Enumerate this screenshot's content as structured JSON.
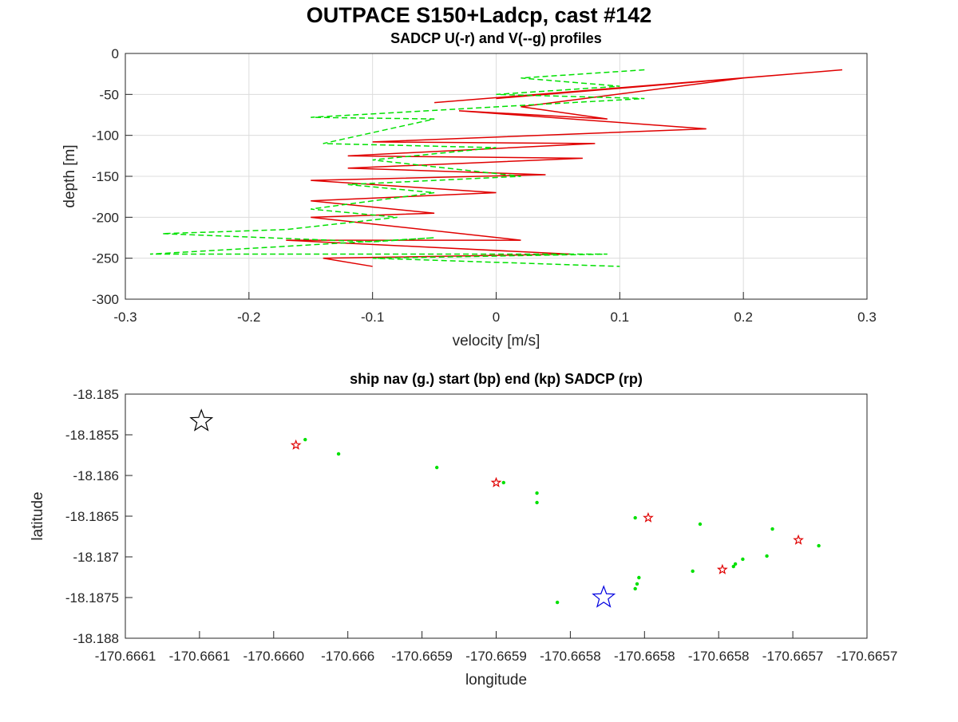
{
  "title": "OUTPACE S150+Ladcp, cast #142",
  "chart_data": [
    {
      "type": "line",
      "title": "SADCP U(-r) and V(--g) profiles",
      "x_label": "velocity [m/s]",
      "y_label": "depth [m]",
      "xlim": [
        -0.3,
        0.3
      ],
      "ylim": [
        -300,
        0
      ],
      "xticks": [
        -0.3,
        -0.2,
        -0.1,
        0,
        0.1,
        0.2,
        0.3
      ],
      "yticks": [
        0,
        -50,
        -100,
        -150,
        -200,
        -250,
        -300
      ],
      "grid": true,
      "series": [
        {
          "color": "#e00000",
          "dash": "solid",
          "x": [
            0.28,
            0.0,
            0.24,
            -0.05,
            0.2,
            0.02,
            0.09,
            -0.03,
            0.17,
            -0.1,
            0.08,
            -0.12,
            0.07,
            -0.12,
            0.04,
            -0.15,
            0.0,
            -0.15,
            -0.05,
            -0.15,
            0.02,
            -0.17,
            0.06,
            -0.14,
            -0.1
          ],
          "values": [
            -20,
            -55,
            -25,
            -60,
            -30,
            -65,
            -80,
            -70,
            -92,
            -108,
            -110,
            -125,
            -128,
            -140,
            -148,
            -155,
            -170,
            -180,
            -195,
            -200,
            -228,
            -228,
            -245,
            -250,
            -260
          ]
        },
        {
          "color": "#00e000",
          "dash": "dashed",
          "x": [
            0.12,
            0.02,
            0.1,
            0.0,
            0.12,
            -0.15,
            -0.05,
            -0.14,
            0.0,
            -0.1,
            0.02,
            -0.12,
            -0.05,
            -0.15,
            -0.08,
            -0.17,
            -0.27,
            -0.1,
            -0.05,
            -0.28,
            0.09,
            -0.1,
            0.1
          ],
          "values": [
            -20,
            -30,
            -40,
            -50,
            -55,
            -78,
            -80,
            -110,
            -115,
            -130,
            -150,
            -160,
            -170,
            -190,
            -200,
            -215,
            -220,
            -230,
            -225,
            -245,
            -245,
            -250,
            -260
          ]
        }
      ]
    },
    {
      "type": "scatter",
      "title": "ship nav (g.) start (bp) end (kp) SADCP (rp)",
      "x_label": "longitude",
      "y_label": "latitude",
      "xlim": [
        -170.6661,
        -170.6657
      ],
      "ylim": [
        -18.188,
        -18.185
      ],
      "grid": false,
      "xticks": [
        {
          "value": -170.6661,
          "label": "-170.6661"
        },
        {
          "value": -170.66606,
          "label": "-170.6661"
        },
        {
          "value": -170.66602,
          "label": "-170.6660"
        },
        {
          "value": -170.66598,
          "label": "-170.666"
        },
        {
          "value": -170.66594,
          "label": "-170.6659"
        },
        {
          "value": -170.6659,
          "label": "-170.6659"
        },
        {
          "value": -170.66586,
          "label": "-170.6658"
        },
        {
          "value": -170.66582,
          "label": "-170.6658"
        },
        {
          "value": -170.66578,
          "label": "-170.6658"
        },
        {
          "value": -170.66574,
          "label": "-170.6657"
        },
        {
          "value": -170.6657,
          "label": "-170.6657"
        }
      ],
      "yticks": [
        -18.185,
        -18.1855,
        -18.186,
        -18.1865,
        -18.187,
        -18.1875,
        -18.188
      ],
      "series": [
        {
          "color": "#00e000",
          "marker": "dot",
          "x": [
            -170.666003,
            -170.665985,
            -170.665932,
            -170.665896,
            -170.665878,
            -170.665878,
            -170.665867,
            -170.665825,
            -170.665823,
            -170.665824,
            -170.665825,
            -170.665794,
            -170.66579,
            -170.665772,
            -170.665771,
            -170.665767,
            -170.665754,
            -170.665751,
            -170.665726
          ],
          "values": [
            -18.185559,
            -18.185735,
            -18.185902,
            -18.186088,
            -18.186216,
            -18.186333,
            -18.187559,
            -18.18652,
            -18.187255,
            -18.187333,
            -18.187392,
            -18.187176,
            -18.186598,
            -18.187118,
            -18.187088,
            -18.187029,
            -18.18699,
            -18.186657,
            -18.186863
          ]
        },
        {
          "color": "#e00000",
          "marker": "small-star",
          "x": [
            -170.666008,
            -170.6659,
            -170.665818,
            -170.665778,
            -170.665737
          ],
          "values": [
            -18.185627,
            -18.186088,
            -18.18652,
            -18.187157,
            -18.186794
          ]
        },
        {
          "color": "#000000",
          "marker": "big-star",
          "x": [
            -170.666059
          ],
          "values": [
            -18.185333
          ]
        },
        {
          "color": "#0000e0",
          "marker": "big-star",
          "x": [
            -170.665842
          ],
          "values": [
            -18.1875
          ]
        }
      ]
    }
  ]
}
